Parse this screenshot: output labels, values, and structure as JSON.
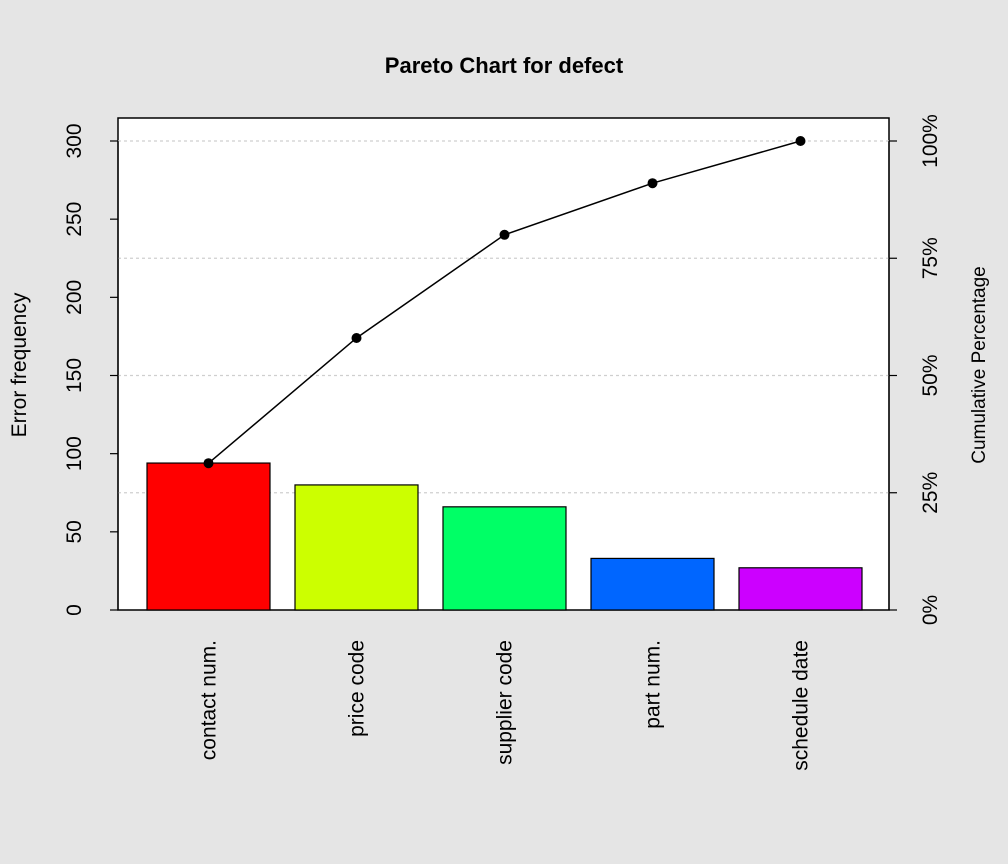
{
  "chart_data": {
    "type": "bar",
    "title": "Pareto Chart for defect",
    "ylabel": "Error frequency",
    "y2label": "Cumulative Percentage",
    "categories": [
      "contact num.",
      "price code",
      "supplier code",
      "part num.",
      "schedule date"
    ],
    "values": [
      94,
      80,
      66,
      33,
      27
    ],
    "cumulative_percent": [
      31.3,
      58,
      80,
      91,
      100
    ],
    "bar_colors": [
      "#ff0000",
      "#ccff00",
      "#00ff66",
      "#0066ff",
      "#cc00ff"
    ],
    "ylim": [
      0,
      300
    ],
    "y_ticks": [
      "0",
      "50",
      "100",
      "150",
      "200",
      "250",
      "300"
    ],
    "y2_ticks": [
      "0%",
      "25%",
      "50%",
      "75%",
      "100%"
    ],
    "grid": "dotted horizontal at cumulative percentage ticks",
    "legend": "none"
  }
}
